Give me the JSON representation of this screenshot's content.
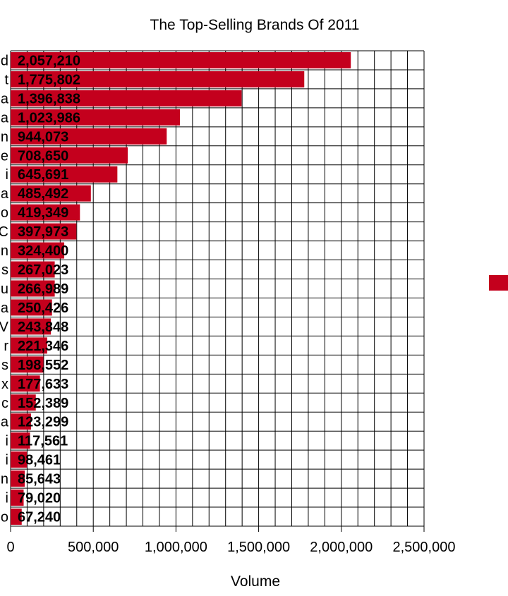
{
  "chart_data": {
    "type": "bar",
    "orientation": "horizontal",
    "title": "The Top-Selling Brands Of 2011",
    "xlabel": "Volume",
    "ylabel": "",
    "xlim": [
      0,
      2500000
    ],
    "x_ticks": [
      "0",
      "500,000",
      "1,000,000",
      "1,500,000",
      "2,000,000",
      "2,500,000"
    ],
    "category_suffixes": [
      "d",
      "t",
      "a",
      "a",
      "n",
      "e",
      "i",
      "a",
      "o",
      "C",
      "n",
      "s",
      "u",
      "a",
      "V",
      "r",
      "s",
      "x",
      "c",
      "a",
      "i",
      "i",
      "n",
      "i",
      "o"
    ],
    "values": [
      2057210,
      1775802,
      1396838,
      1023986,
      944073,
      708650,
      645691,
      485492,
      419349,
      397973,
      324400,
      267023,
      266989,
      250426,
      243848,
      221346,
      198552,
      177633,
      152389,
      123299,
      117561,
      98461,
      85643,
      79020,
      67240
    ],
    "data_labels": [
      "2,057,210",
      "1,775,802",
      "1,396,838",
      "1,023,986",
      "944,073",
      "708,650",
      "645,691",
      "485,492",
      "419,349",
      "397,973",
      "324,400",
      "267,023",
      "266,989",
      "250,426",
      "243,848",
      "221,346",
      "198,552",
      "177,633",
      "152,389",
      "123,299",
      "117,561",
      "98,461",
      "85,643",
      "79,020",
      "67,240"
    ],
    "bar_color": "#c4001d",
    "grid": true,
    "legend": "right"
  }
}
